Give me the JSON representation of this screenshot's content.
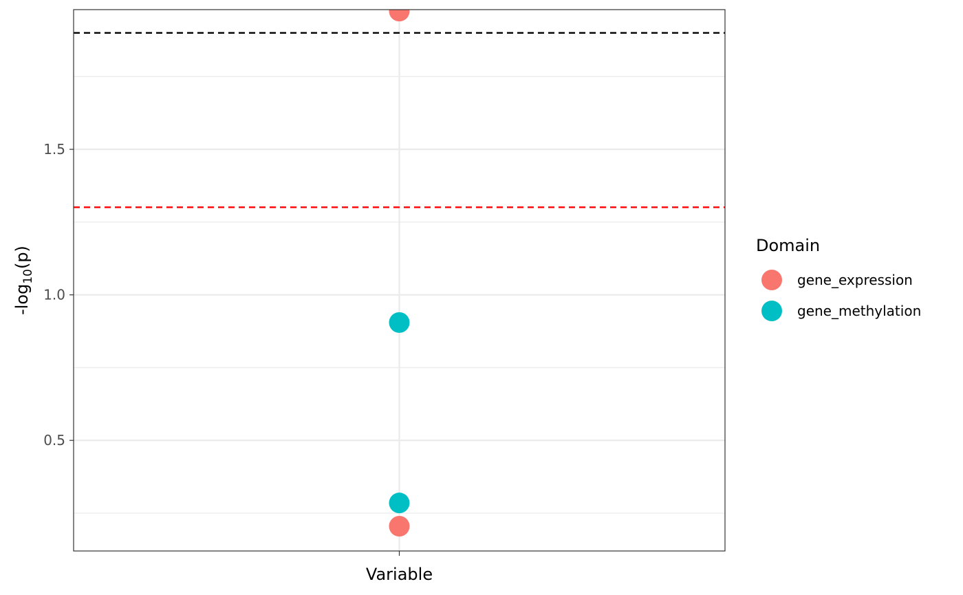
{
  "chart_data": {
    "type": "scatter",
    "title": "",
    "xlabel": "Variable",
    "ylabel": "-log",
    "ylabel_sub": "10",
    "ylabel_tail": "(p)",
    "categories": [
      ""
    ],
    "ylim": [
      0.12,
      1.98
    ],
    "yticks": [
      0.5,
      1.0,
      1.5
    ],
    "ytick_labels": [
      "0.5",
      "1.0",
      "1.5"
    ],
    "minor_yticks": [
      0.25,
      0.75,
      1.25,
      1.75
    ],
    "grid": true,
    "reference_lines": [
      {
        "y": 1.9,
        "color": "#000000",
        "style": "dashed"
      },
      {
        "y": 1.301,
        "color": "#ff0000",
        "style": "dashed"
      }
    ],
    "series": [
      {
        "name": "gene_expression",
        "color": "#F8766D",
        "points": [
          {
            "x": "",
            "y": 1.975
          },
          {
            "x": "",
            "y": 0.205
          }
        ]
      },
      {
        "name": "gene_methylation",
        "color": "#00BFC4",
        "points": [
          {
            "x": "",
            "y": 0.905
          },
          {
            "x": "",
            "y": 0.285
          }
        ]
      }
    ],
    "legend": {
      "title": "Domain",
      "position": "right"
    }
  }
}
